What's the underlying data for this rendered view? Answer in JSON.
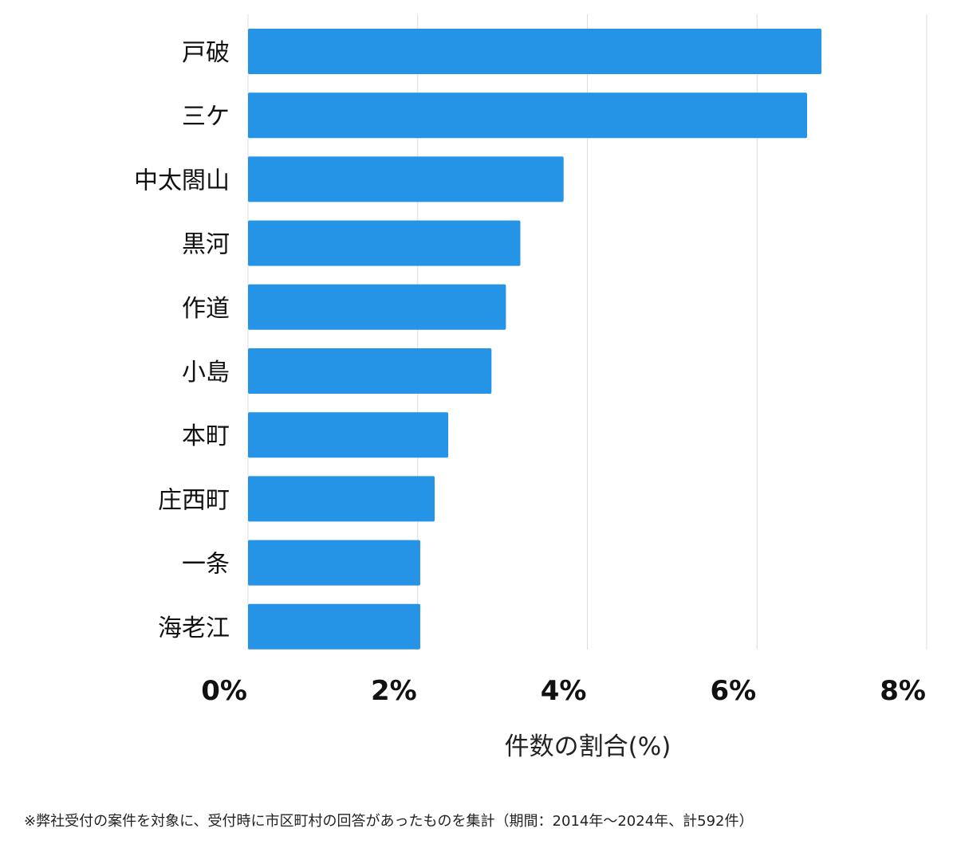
{
  "chart_data": {
    "type": "bar",
    "orientation": "horizontal",
    "categories": [
      "戸破",
      "三ケ",
      "中太閤山",
      "黒河",
      "作道",
      "小島",
      "本町",
      "庄西町",
      "一条",
      "海老江"
    ],
    "values": [
      6.76,
      6.59,
      3.72,
      3.21,
      3.04,
      2.87,
      2.36,
      2.2,
      2.03,
      2.03
    ],
    "xlabel": "件数の割合(%)",
    "ylabel": "",
    "xlim": [
      0,
      8
    ],
    "xticks": [
      0,
      2,
      4,
      6,
      8
    ],
    "xtick_labels": [
      "0%",
      "2%",
      "4%",
      "6%",
      "8%"
    ],
    "grid": true,
    "bar_color": "#2593e6"
  },
  "footnote": "※弊社受付の案件を対象に、受付時に市区町村の回答があったものを集計（期間：2014年～2024年、計592件）"
}
